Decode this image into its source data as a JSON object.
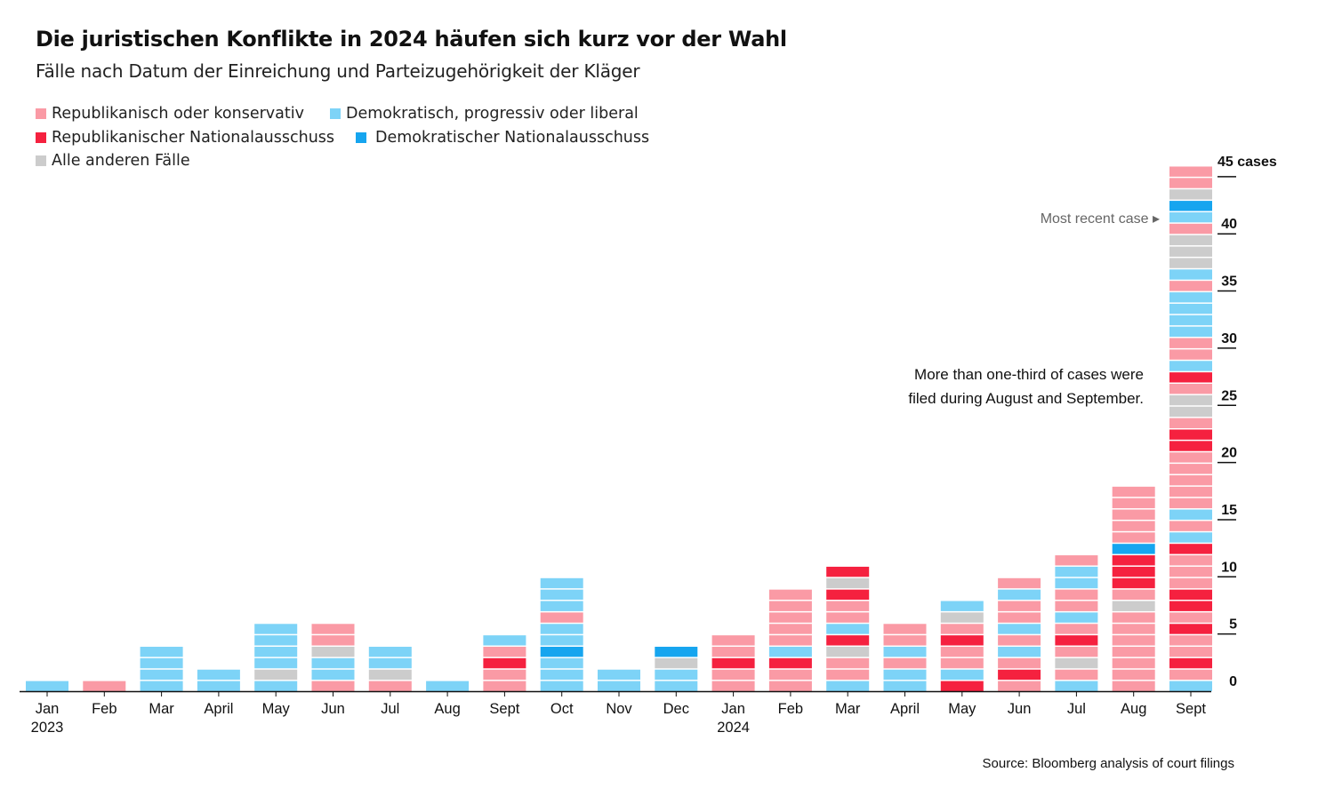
{
  "title": "Die juristischen Konflikte in 2024 häufen sich kurz vor der Wahl",
  "subtitle": "Fälle nach Datum der Einreichung und Parteizugehörigkeit der Kläger",
  "legend": [
    {
      "key": "R",
      "label": "Republikanisch oder konservativ",
      "color": "#fa9aa5"
    },
    {
      "key": "D",
      "label": "Demokratisch, progressiv oder liberal",
      "color": "#7dd3f7"
    },
    {
      "key": "RNC",
      "label": "Republikanischer Nationalausschuss",
      "color": "#f5213f"
    },
    {
      "key": "DNC",
      "label": "Demokratischer Nationalausschuss",
      "color": "#16a5ef"
    },
    {
      "key": "O",
      "label": "Alle anderen Fälle",
      "color": "#cccccc"
    }
  ],
  "annotation": {
    "line1": "More than one-third of cases were",
    "line2": "filed during August and September."
  },
  "most_recent_label": "Most recent case ▸",
  "source": "Source: Bloomberg analysis of court filings",
  "chart_data": {
    "type": "bar",
    "stacked": true,
    "unit_label": "45 cases",
    "ylim": [
      0,
      45
    ],
    "yticks": [
      0,
      5,
      10,
      15,
      20,
      25,
      30,
      35,
      40
    ],
    "colors": {
      "R": "#fa9aa5",
      "D": "#7dd3f7",
      "RNC": "#f5213f",
      "DNC": "#16a5ef",
      "O": "#cccccc"
    },
    "categories": [
      {
        "label": "Jan",
        "year": "2023"
      },
      {
        "label": "Feb"
      },
      {
        "label": "Mar"
      },
      {
        "label": "April"
      },
      {
        "label": "May"
      },
      {
        "label": "Jun"
      },
      {
        "label": "Jul"
      },
      {
        "label": "Aug"
      },
      {
        "label": "Sept"
      },
      {
        "label": "Oct"
      },
      {
        "label": "Nov"
      },
      {
        "label": "Dec"
      },
      {
        "label": "Jan",
        "year": "2024"
      },
      {
        "label": "Feb"
      },
      {
        "label": "Mar"
      },
      {
        "label": "April"
      },
      {
        "label": "May"
      },
      {
        "label": "Jun"
      },
      {
        "label": "Jul"
      },
      {
        "label": "Aug"
      },
      {
        "label": "Sept"
      }
    ],
    "stacks_bottom_to_top": [
      [
        "D"
      ],
      [
        "R"
      ],
      [
        "D",
        "D",
        "D",
        "D"
      ],
      [
        "D",
        "D"
      ],
      [
        "D",
        "O",
        "D",
        "D",
        "D",
        "D"
      ],
      [
        "R",
        "D",
        "D",
        "O",
        "R",
        "R"
      ],
      [
        "R",
        "O",
        "D",
        "D"
      ],
      [
        "D"
      ],
      [
        "R",
        "R",
        "RNC",
        "R",
        "D"
      ],
      [
        "D",
        "D",
        "D",
        "DNC",
        "D",
        "D",
        "R",
        "D",
        "D",
        "D"
      ],
      [
        "D",
        "D"
      ],
      [
        "D",
        "D",
        "O",
        "DNC"
      ],
      [
        "R",
        "R",
        "RNC",
        "R",
        "R"
      ],
      [
        "R",
        "R",
        "RNC",
        "D",
        "R",
        "R",
        "R",
        "R",
        "R"
      ],
      [
        "D",
        "R",
        "R",
        "O",
        "RNC",
        "D",
        "R",
        "R",
        "RNC",
        "O",
        "RNC"
      ],
      [
        "D",
        "D",
        "R",
        "D",
        "R",
        "R"
      ],
      [
        "RNC",
        "D",
        "R",
        "R",
        "RNC",
        "R",
        "O",
        "D"
      ],
      [
        "R",
        "RNC",
        "R",
        "D",
        "R",
        "D",
        "R",
        "R",
        "D",
        "R"
      ],
      [
        "D",
        "R",
        "O",
        "R",
        "RNC",
        "R",
        "D",
        "R",
        "R",
        "D",
        "D",
        "R"
      ],
      [
        "R",
        "R",
        "R",
        "R",
        "R",
        "R",
        "R",
        "O",
        "R",
        "RNC",
        "RNC",
        "RNC",
        "DNC",
        "R",
        "R",
        "R",
        "R",
        "R"
      ],
      [
        "D",
        "R",
        "RNC",
        "R",
        "R",
        "RNC",
        "R",
        "RNC",
        "RNC",
        "R",
        "R",
        "R",
        "RNC",
        "D",
        "R",
        "D",
        "R",
        "R",
        "R",
        "R",
        "R",
        "RNC",
        "RNC",
        "R",
        "O",
        "O",
        "R",
        "RNC",
        "D",
        "R",
        "R",
        "D",
        "D",
        "D",
        "D",
        "R",
        "D",
        "O",
        "O",
        "O",
        "R",
        "D",
        "DNC",
        "O",
        "R",
        "R"
      ]
    ]
  }
}
